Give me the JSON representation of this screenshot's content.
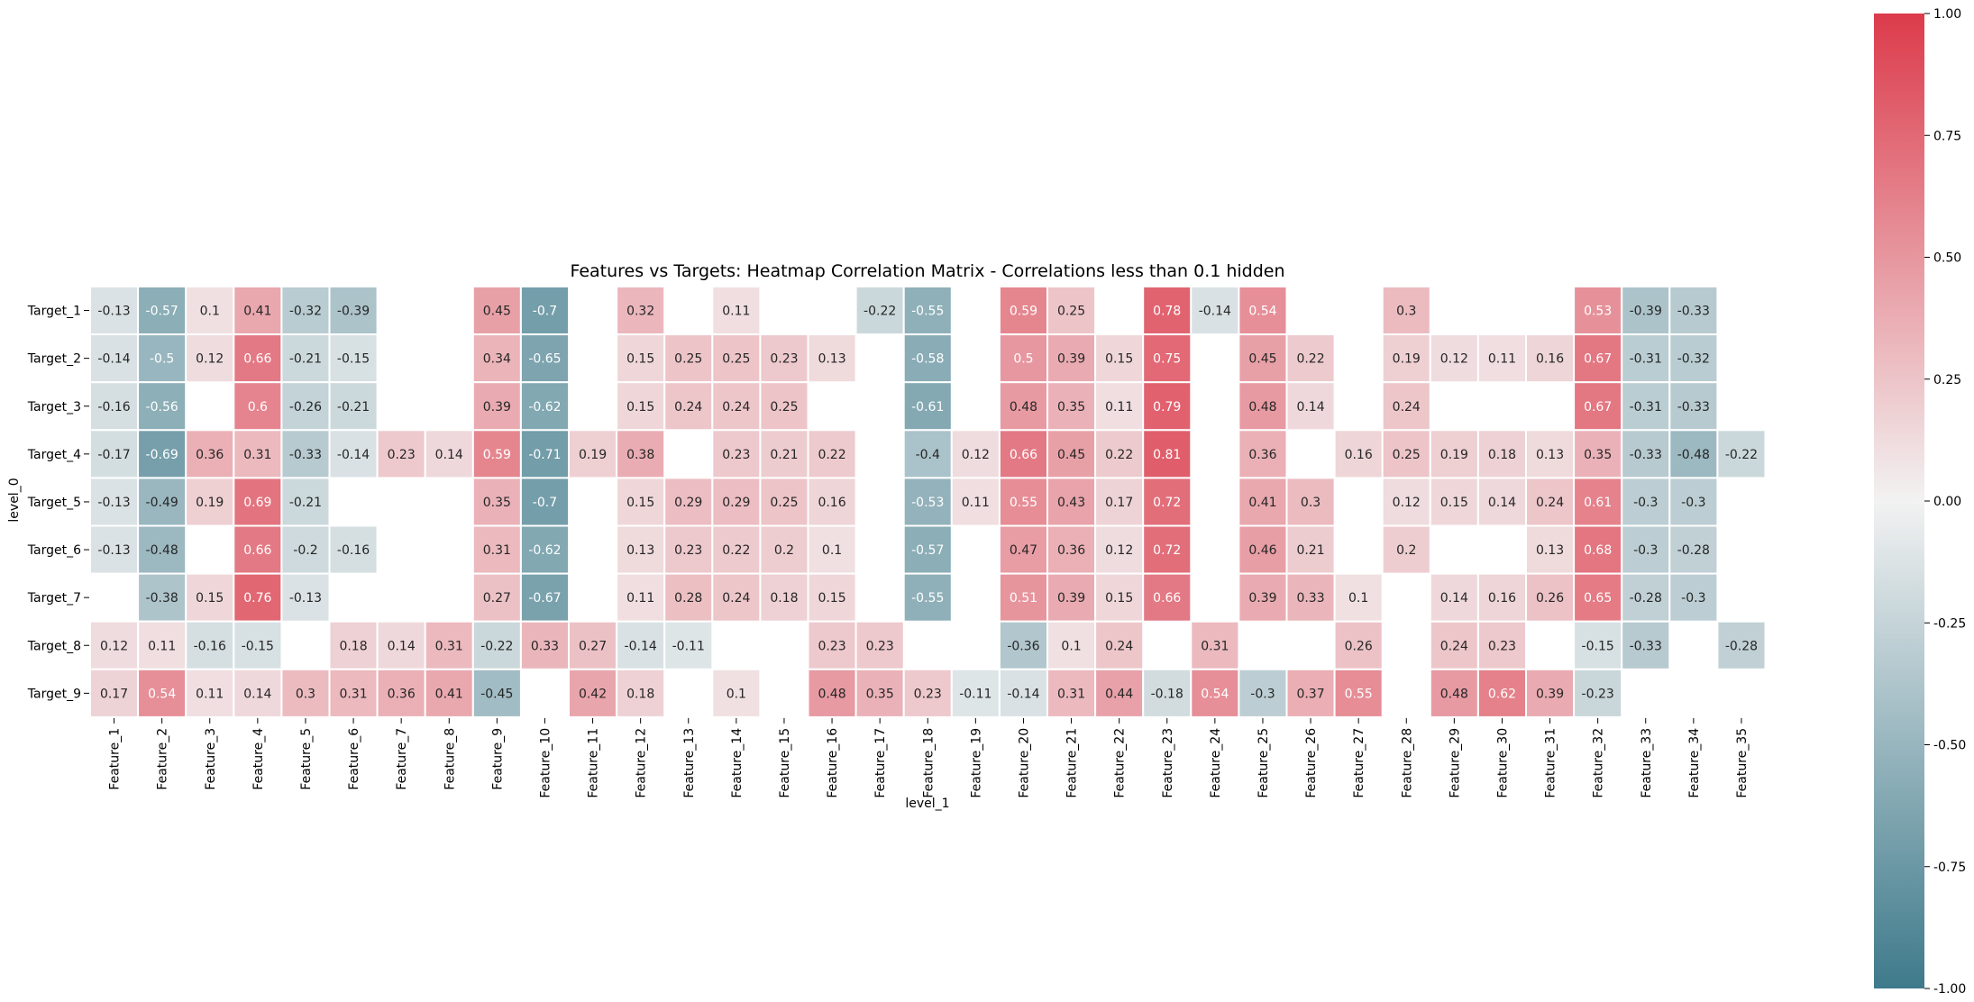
{
  "chart_data": {
    "type": "heatmap",
    "title": "Features vs Targets: Heatmap Correlation Matrix - Correlations less than 0.1 hidden",
    "xlabel": "level_1",
    "ylabel": "level_0",
    "x": [
      "Feature_1",
      "Feature_2",
      "Feature_3",
      "Feature_4",
      "Feature_5",
      "Feature_6",
      "Feature_7",
      "Feature_8",
      "Feature_9",
      "Feature_10",
      "Feature_11",
      "Feature_12",
      "Feature_13",
      "Feature_14",
      "Feature_15",
      "Feature_16",
      "Feature_17",
      "Feature_18",
      "Feature_19",
      "Feature_20",
      "Feature_21",
      "Feature_22",
      "Feature_23",
      "Feature_24",
      "Feature_25",
      "Feature_26",
      "Feature_27",
      "Feature_28",
      "Feature_29",
      "Feature_30",
      "Feature_31",
      "Feature_32",
      "Feature_33",
      "Feature_34",
      "Feature_35"
    ],
    "y": [
      "Target_1",
      "Target_2",
      "Target_3",
      "Target_4",
      "Target_5",
      "Target_6",
      "Target_7",
      "Target_8",
      "Target_9"
    ],
    "values": [
      [
        -0.13,
        -0.57,
        0.1,
        0.41,
        -0.32,
        -0.39,
        null,
        null,
        0.45,
        -0.7,
        null,
        0.32,
        null,
        0.11,
        null,
        null,
        -0.22,
        -0.55,
        null,
        0.59,
        0.25,
        null,
        0.78,
        -0.14,
        0.54,
        null,
        null,
        0.3,
        null,
        null,
        null,
        0.53,
        -0.39,
        -0.33,
        null
      ],
      [
        -0.14,
        -0.5,
        0.12,
        0.66,
        -0.21,
        -0.15,
        null,
        null,
        0.34,
        -0.65,
        null,
        0.15,
        0.25,
        0.25,
        0.23,
        0.13,
        null,
        -0.58,
        null,
        0.5,
        0.39,
        0.15,
        0.75,
        null,
        0.45,
        0.22,
        null,
        0.19,
        0.12,
        0.11,
        0.16,
        0.67,
        -0.31,
        -0.32,
        null
      ],
      [
        -0.16,
        -0.56,
        null,
        0.6,
        -0.26,
        -0.21,
        null,
        null,
        0.39,
        -0.62,
        null,
        0.15,
        0.24,
        0.24,
        0.25,
        null,
        null,
        -0.61,
        null,
        0.48,
        0.35,
        0.11,
        0.79,
        null,
        0.48,
        0.14,
        null,
        0.24,
        null,
        null,
        null,
        0.67,
        -0.31,
        -0.33,
        null
      ],
      [
        -0.17,
        -0.69,
        0.36,
        0.31,
        -0.33,
        -0.14,
        0.23,
        0.14,
        0.59,
        -0.71,
        0.19,
        0.38,
        null,
        0.23,
        0.21,
        0.22,
        null,
        -0.4,
        0.12,
        0.66,
        0.45,
        0.22,
        0.81,
        null,
        0.36,
        null,
        0.16,
        0.25,
        0.19,
        0.18,
        0.13,
        0.35,
        -0.33,
        -0.48,
        -0.22
      ],
      [
        -0.13,
        -0.49,
        0.19,
        0.69,
        -0.21,
        null,
        null,
        null,
        0.35,
        -0.7,
        null,
        0.15,
        0.29,
        0.29,
        0.25,
        0.16,
        null,
        -0.53,
        0.11,
        0.55,
        0.43,
        0.17,
        0.72,
        null,
        0.41,
        0.3,
        null,
        0.12,
        0.15,
        0.14,
        0.24,
        0.61,
        -0.3,
        -0.3,
        null
      ],
      [
        -0.13,
        -0.48,
        null,
        0.66,
        -0.2,
        -0.16,
        null,
        null,
        0.31,
        -0.62,
        null,
        0.13,
        0.23,
        0.22,
        0.2,
        0.1,
        null,
        -0.57,
        null,
        0.47,
        0.36,
        0.12,
        0.72,
        null,
        0.46,
        0.21,
        null,
        0.2,
        null,
        null,
        0.13,
        0.68,
        -0.3,
        -0.28,
        null
      ],
      [
        null,
        -0.38,
        0.15,
        0.76,
        -0.13,
        null,
        null,
        null,
        0.27,
        -0.67,
        null,
        0.11,
        0.28,
        0.24,
        0.18,
        0.15,
        null,
        -0.55,
        null,
        0.51,
        0.39,
        0.15,
        0.66,
        null,
        0.39,
        0.33,
        0.1,
        null,
        0.14,
        0.16,
        0.26,
        0.65,
        -0.28,
        -0.3,
        null
      ],
      [
        0.12,
        0.11,
        -0.16,
        -0.15,
        null,
        0.18,
        0.14,
        0.31,
        -0.22,
        0.33,
        0.27,
        -0.14,
        -0.11,
        null,
        null,
        0.23,
        0.23,
        null,
        null,
        -0.36,
        0.1,
        0.24,
        null,
        0.31,
        null,
        null,
        0.26,
        null,
        0.24,
        0.23,
        null,
        -0.15,
        -0.33,
        null,
        -0.28
      ],
      [
        0.17,
        0.54,
        0.11,
        0.14,
        0.3,
        0.31,
        0.36,
        0.41,
        -0.45,
        null,
        0.42,
        0.18,
        null,
        0.1,
        null,
        0.48,
        0.35,
        0.23,
        -0.11,
        -0.14,
        0.31,
        0.44,
        -0.18,
        0.54,
        -0.3,
        0.37,
        0.55,
        null,
        0.48,
        0.62,
        0.39,
        -0.23,
        null,
        null,
        null
      ]
    ],
    "vmin": -1.0,
    "vmax": 1.0,
    "colorbar_ticks": [
      "-1.00",
      "-0.75",
      "-0.50",
      "-0.25",
      "0.00",
      "0.25",
      "0.50",
      "0.75",
      "1.00"
    ],
    "colormap": {
      "low": "#3e7a8b",
      "mid": "#f2f2f2",
      "high": "#dc3b4b"
    },
    "annotations": true,
    "grid": false,
    "legend": "colorbar-right"
  }
}
